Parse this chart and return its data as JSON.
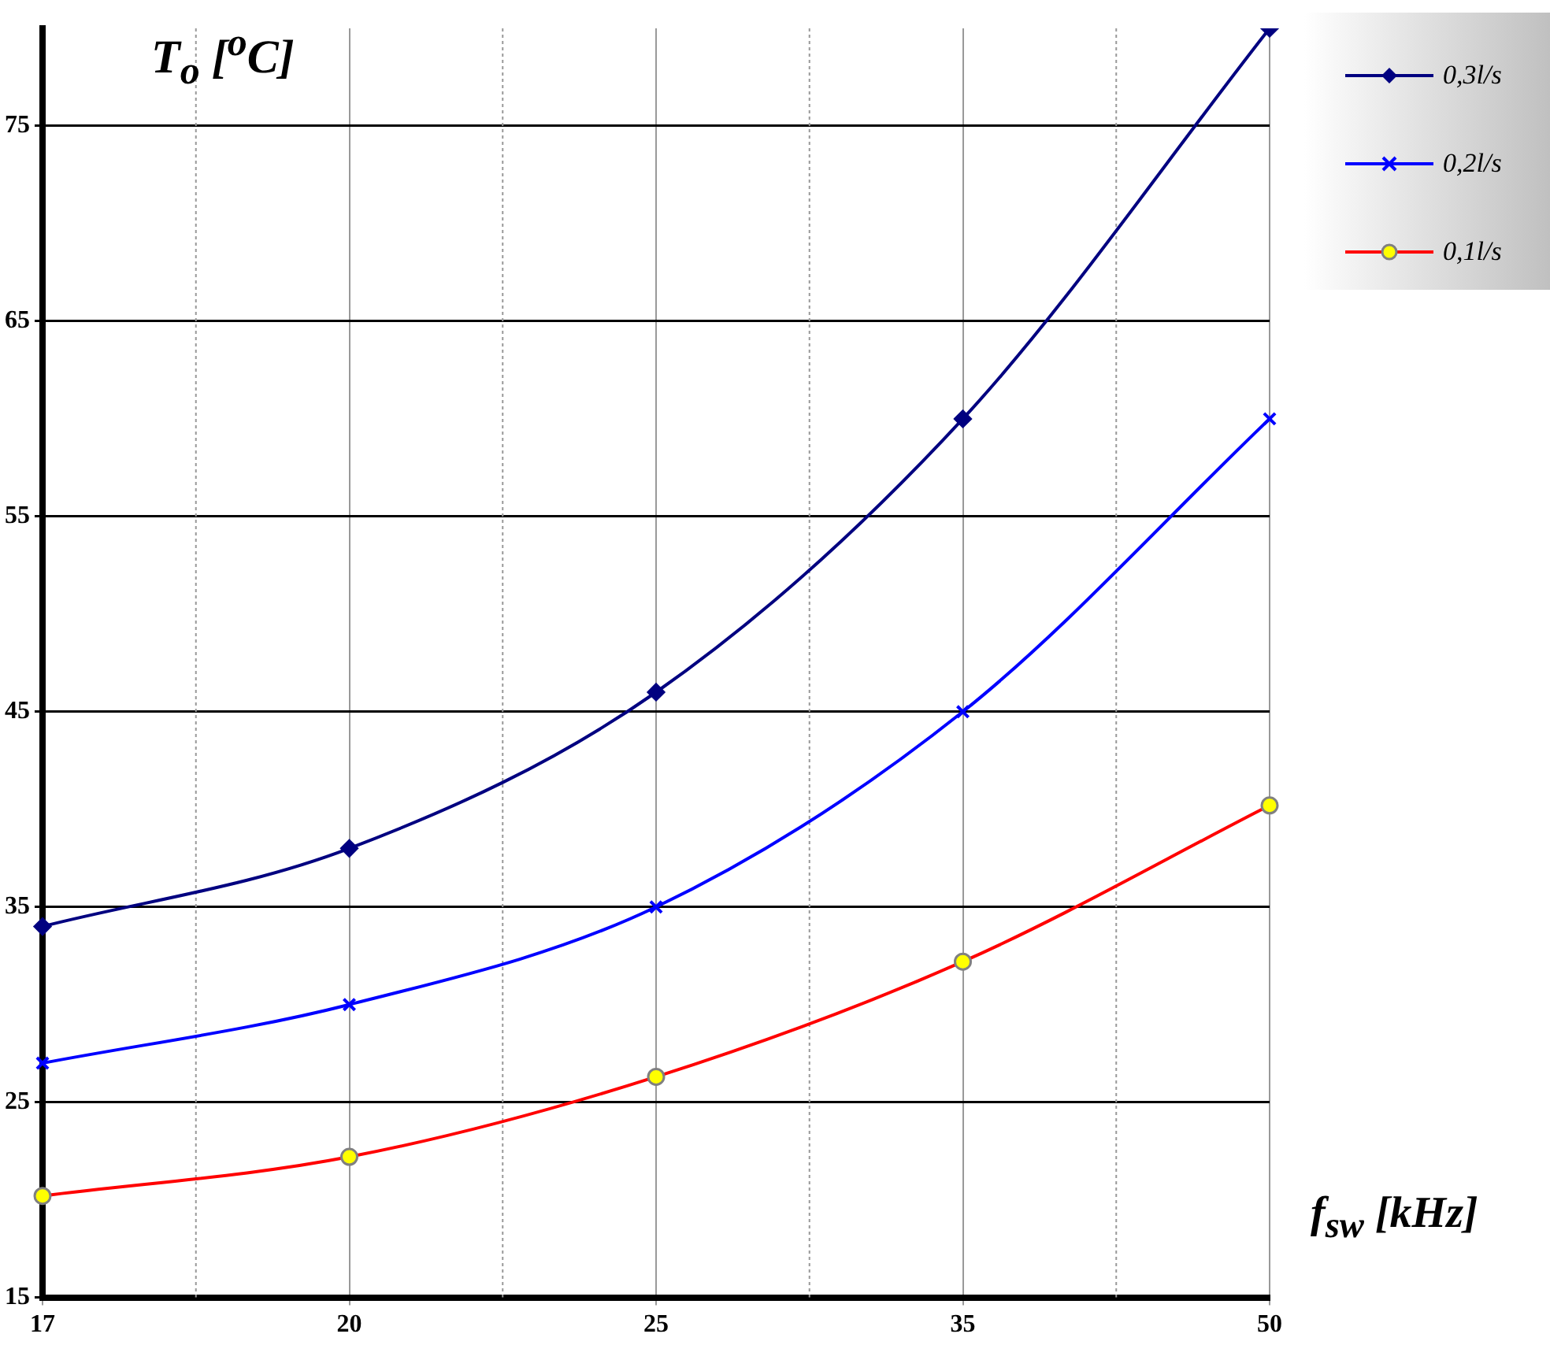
{
  "chart_data": {
    "type": "line",
    "xlabel": "f$_{sw}$ [kHz]",
    "ylabel": "T$_{o}$ [$^{o}$C]",
    "categories": [
      "17",
      "20",
      "25",
      "35",
      "50"
    ],
    "ylim": [
      15,
      80
    ],
    "yticks": [
      15,
      25,
      35,
      45,
      55,
      65,
      75
    ],
    "grid": true,
    "legend": "top right",
    "line_style": "solid",
    "series": [
      {
        "name": "0,3l/s",
        "color": "#000080",
        "marker": "diamond",
        "values": [
          34,
          38,
          46,
          60,
          80
        ]
      },
      {
        "name": "0,2l/s",
        "color": "#0000ff",
        "marker": "cross",
        "values": [
          27,
          30,
          35,
          45,
          60
        ]
      },
      {
        "name": "0,1l/s",
        "color": "#ff0000",
        "marker": "circle",
        "values": [
          20.2,
          22.2,
          26.3,
          32.2,
          40.2
        ]
      }
    ]
  }
}
